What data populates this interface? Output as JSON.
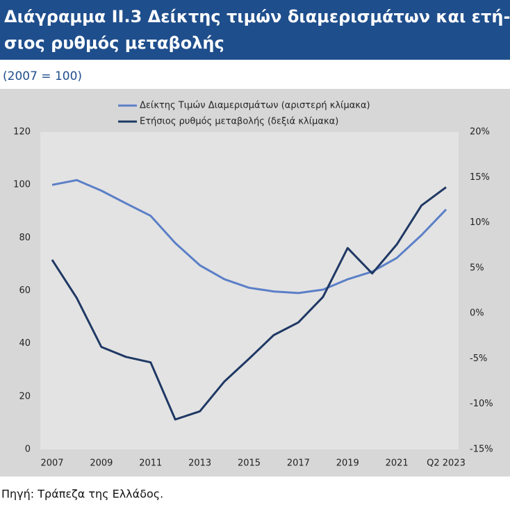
{
  "chart_data": {
    "type": "line",
    "title": [
      "Διάγραμμα ΙΙ.3 Δείκτης τιμών διαμερισμάτων και ετή-",
      "σιος ρυθμός μεταβολής"
    ],
    "subtitle": "(2007 = 100)",
    "source": "Πηγή: Τράπεζα της Ελλάδος.",
    "categories": [
      "2007",
      null,
      "2009",
      null,
      "2011",
      null,
      "2013",
      null,
      "2015",
      null,
      "2017",
      null,
      "2019",
      null,
      "2021",
      null,
      "Q2 2023"
    ],
    "series": [
      {
        "name": "Δείκτης Τιμών Διαμερισμάτων (αριστερή κλίμακα)",
        "color": "#5b7fc7",
        "values": [
          100,
          101.8,
          97.8,
          93,
          88.3,
          78,
          69.6,
          64.3,
          61.1,
          59.7,
          59.1,
          60.4,
          64.3,
          67.2,
          72.4,
          81,
          90.7
        ]
      },
      {
        "name": "Ετήσιος ρυθμός μεταβολής (δεξιά κλίμακα)",
        "color": "#1f3864",
        "axis": "y2",
        "values": [
          5.9,
          1.7,
          -3.7,
          -4.8,
          -5.4,
          -11.7,
          -10.8,
          -7.5,
          -5,
          -2.4,
          -1,
          1.8,
          7.2,
          4.4,
          7.6,
          11.9,
          13.9
        ]
      }
    ],
    "ylim": [
      0,
      120
    ],
    "yticks": [
      0,
      20,
      40,
      60,
      80,
      100,
      120
    ],
    "y2lim": [
      -15,
      20
    ],
    "y2ticks": [
      {
        "value": -15,
        "label": "-15%"
      },
      {
        "value": -10,
        "label": "-10%"
      },
      {
        "value": -5,
        "label": "-5%"
      },
      {
        "value": 0,
        "label": "0%"
      },
      {
        "value": 5,
        "label": "5%"
      },
      {
        "value": 10,
        "label": "10%"
      },
      {
        "value": 15,
        "label": "15%"
      },
      {
        "value": 20,
        "label": "20%"
      }
    ],
    "grid": false
  }
}
